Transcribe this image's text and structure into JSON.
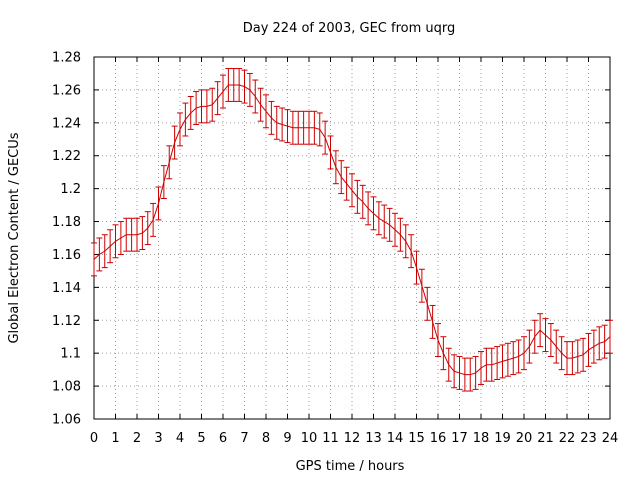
{
  "chart_data": {
    "type": "line",
    "title": "Day 224 of 2003, GEC from uqrg",
    "xlabel": "GPS time / hours",
    "ylabel": "Global Electron Content / GECUs",
    "xlim": [
      0,
      24
    ],
    "ylim": [
      1.06,
      1.28
    ],
    "grid": true,
    "xticks": [
      "0",
      "1",
      "2",
      "3",
      "4",
      "5",
      "6",
      "7",
      "8",
      "9",
      "10",
      "11",
      "12",
      "13",
      "14",
      "15",
      "16",
      "17",
      "18",
      "19",
      "20",
      "21",
      "22",
      "23",
      "24"
    ],
    "yticks": [
      "1.06",
      "1.08",
      "1.1",
      "1.12",
      "1.14",
      "1.16",
      "1.18",
      "1.2",
      "1.22",
      "1.24",
      "1.26",
      "1.28"
    ],
    "series": [
      {
        "color": "#cc0000",
        "error_bars": true,
        "x": [
          0,
          0.25,
          0.5,
          0.75,
          1,
          1.25,
          1.5,
          1.75,
          2,
          2.25,
          2.5,
          2.75,
          3,
          3.25,
          3.5,
          3.75,
          4,
          4.25,
          4.5,
          4.75,
          5,
          5.25,
          5.5,
          5.75,
          6,
          6.25,
          6.5,
          6.75,
          7,
          7.25,
          7.5,
          7.75,
          8,
          8.25,
          8.5,
          8.75,
          9,
          9.25,
          9.5,
          9.75,
          10,
          10.25,
          10.5,
          10.75,
          11,
          11.25,
          11.5,
          11.75,
          12,
          12.25,
          12.5,
          12.75,
          13,
          13.25,
          13.5,
          13.75,
          14,
          14.25,
          14.5,
          14.75,
          15,
          15.25,
          15.5,
          15.75,
          16,
          16.25,
          16.5,
          16.75,
          17,
          17.25,
          17.5,
          17.75,
          18,
          18.25,
          18.5,
          18.75,
          19,
          19.25,
          19.5,
          19.75,
          20,
          20.25,
          20.5,
          20.75,
          21,
          21.25,
          21.5,
          21.75,
          22,
          22.25,
          22.5,
          22.75,
          23,
          23.25,
          23.5,
          23.75,
          24
        ],
        "y": [
          1.157,
          1.16,
          1.162,
          1.165,
          1.168,
          1.17,
          1.172,
          1.172,
          1.172,
          1.173,
          1.176,
          1.181,
          1.191,
          1.204,
          1.216,
          1.228,
          1.236,
          1.242,
          1.246,
          1.249,
          1.25,
          1.25,
          1.251,
          1.255,
          1.259,
          1.263,
          1.263,
          1.263,
          1.262,
          1.26,
          1.256,
          1.251,
          1.247,
          1.243,
          1.24,
          1.239,
          1.238,
          1.237,
          1.237,
          1.237,
          1.237,
          1.237,
          1.236,
          1.231,
          1.222,
          1.213,
          1.207,
          1.203,
          1.199,
          1.195,
          1.192,
          1.188,
          1.185,
          1.182,
          1.18,
          1.178,
          1.175,
          1.172,
          1.168,
          1.162,
          1.152,
          1.141,
          1.13,
          1.119,
          1.108,
          1.1,
          1.093,
          1.089,
          1.088,
          1.087,
          1.087,
          1.088,
          1.091,
          1.093,
          1.093,
          1.094,
          1.095,
          1.096,
          1.097,
          1.098,
          1.1,
          1.104,
          1.11,
          1.114,
          1.111,
          1.108,
          1.104,
          1.1,
          1.097,
          1.097,
          1.098,
          1.099,
          1.102,
          1.104,
          1.106,
          1.107,
          1.11
        ],
        "err": 0.01
      }
    ]
  }
}
